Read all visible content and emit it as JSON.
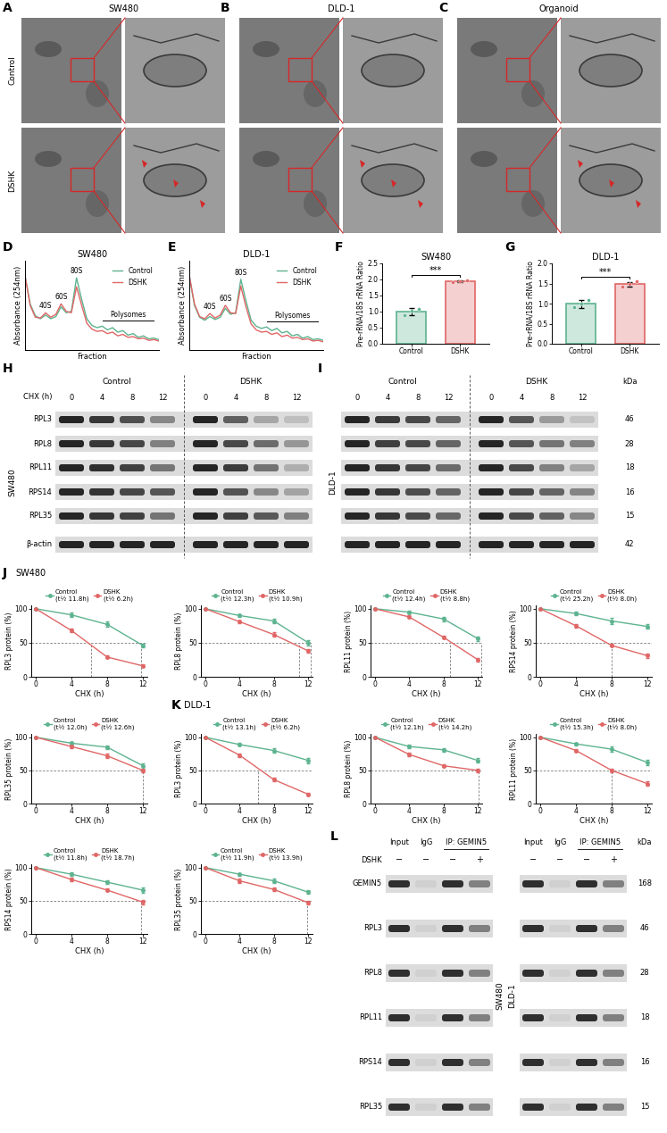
{
  "micrographs": {
    "rows": [
      "Control",
      "DSHK"
    ],
    "columns": [
      {
        "panel": "A",
        "title": "SW480"
      },
      {
        "panel": "B",
        "title": "DLD-1"
      },
      {
        "panel": "C",
        "title": "Organoid"
      }
    ]
  },
  "chart_data": [
    {
      "type": "line",
      "panel": "D",
      "title": "SW480",
      "xlabel": "Fraction",
      "ylabel": "Absorbance (254nm)",
      "tick_labels": false,
      "legend": "upper right",
      "xlim": [
        0,
        26
      ],
      "ylim": [
        0,
        1.2
      ],
      "x": [
        0,
        1,
        2,
        3,
        4,
        5,
        6,
        7,
        8,
        9,
        10,
        11,
        12,
        13,
        14,
        15,
        16,
        17,
        18,
        19,
        20,
        21,
        22,
        23,
        24,
        25,
        26
      ],
      "series": [
        {
          "name": "Control",
          "color": "#5db38f",
          "values": [
            1.0,
            0.62,
            0.46,
            0.42,
            0.47,
            0.42,
            0.45,
            0.58,
            0.5,
            0.52,
            0.97,
            0.68,
            0.42,
            0.33,
            0.3,
            0.32,
            0.27,
            0.3,
            0.24,
            0.26,
            0.2,
            0.22,
            0.17,
            0.19,
            0.15,
            0.16,
            0.14
          ]
        },
        {
          "name": "DSHK",
          "color": "#e06666",
          "values": [
            1.0,
            0.6,
            0.44,
            0.43,
            0.5,
            0.44,
            0.48,
            0.62,
            0.52,
            0.5,
            0.85,
            0.6,
            0.36,
            0.28,
            0.25,
            0.26,
            0.22,
            0.24,
            0.19,
            0.21,
            0.17,
            0.18,
            0.15,
            0.16,
            0.13,
            0.14,
            0.12
          ]
        }
      ],
      "peaks": [
        {
          "label": "40S",
          "x": 4
        },
        {
          "label": "60S",
          "x": 7
        },
        {
          "label": "80S",
          "x": 10
        }
      ],
      "ranges": [
        {
          "label": "Polysomes",
          "x": [
            15,
            25
          ]
        }
      ]
    },
    {
      "type": "line",
      "panel": "E",
      "title": "DLD-1",
      "xlabel": "Fraction",
      "ylabel": "Absorbance (254nm)",
      "tick_labels": false,
      "legend": "upper right",
      "xlim": [
        0,
        26
      ],
      "ylim": [
        0,
        1.2
      ],
      "x": [
        0,
        1,
        2,
        3,
        4,
        5,
        6,
        7,
        8,
        9,
        10,
        11,
        12,
        13,
        14,
        15,
        16,
        17,
        18,
        19,
        20,
        21,
        22,
        23,
        24,
        25,
        26
      ],
      "series": [
        {
          "name": "Control",
          "color": "#5db38f",
          "values": [
            1.0,
            0.6,
            0.44,
            0.4,
            0.45,
            0.41,
            0.44,
            0.56,
            0.48,
            0.5,
            0.95,
            0.66,
            0.4,
            0.32,
            0.29,
            0.31,
            0.26,
            0.29,
            0.23,
            0.25,
            0.19,
            0.21,
            0.16,
            0.18,
            0.14,
            0.15,
            0.13
          ]
        },
        {
          "name": "DSHK",
          "color": "#e06666",
          "values": [
            1.0,
            0.62,
            0.45,
            0.42,
            0.49,
            0.43,
            0.47,
            0.6,
            0.5,
            0.49,
            0.86,
            0.58,
            0.35,
            0.27,
            0.24,
            0.25,
            0.21,
            0.23,
            0.18,
            0.2,
            0.16,
            0.17,
            0.14,
            0.15,
            0.12,
            0.13,
            0.11
          ]
        }
      ],
      "peaks": [
        {
          "label": "40S",
          "x": 4
        },
        {
          "label": "60S",
          "x": 7
        },
        {
          "label": "80S",
          "x": 10
        }
      ],
      "ranges": [
        {
          "label": "Polysomes",
          "x": [
            15,
            25
          ]
        }
      ]
    },
    {
      "type": "bar",
      "panel": "F",
      "title": "SW480",
      "ylabel": "Pre-rRNA/18S rRNA Ratio",
      "categories": [
        "Control",
        "DSHK"
      ],
      "values": [
        1.0,
        1.95
      ],
      "errors": [
        0.1,
        0.03
      ],
      "points": [
        [
          0.9,
          1.02,
          1.08
        ],
        [
          1.92,
          1.95,
          1.98
        ]
      ],
      "colors": [
        "#5db38f",
        "#e06666"
      ],
      "ylim": [
        0,
        2.5
      ],
      "yticks": [
        {
          "value": 0,
          "label": "0.0"
        },
        {
          "value": 0.5,
          "label": "0.5"
        },
        {
          "value": 1.0,
          "label": "1.0"
        },
        {
          "value": 1.5,
          "label": "1.5"
        },
        {
          "value": 2.0,
          "label": "2.0"
        },
        {
          "value": 2.5,
          "label": "2.5"
        }
      ],
      "significance": "***"
    },
    {
      "type": "bar",
      "panel": "G",
      "title": "DLD-1",
      "ylabel": "Pre-rRNA/18S rRNA Ratio",
      "categories": [
        "Control",
        "DSHK"
      ],
      "values": [
        1.0,
        1.48
      ],
      "errors": [
        0.1,
        0.05
      ],
      "points": [
        [
          0.92,
          1.0,
          1.1
        ],
        [
          1.42,
          1.48,
          1.55
        ]
      ],
      "colors": [
        "#5db38f",
        "#e06666"
      ],
      "ylim": [
        0,
        2.0
      ],
      "yticks": [
        {
          "value": 0,
          "label": "0.0"
        },
        {
          "value": 0.5,
          "label": "0.5"
        },
        {
          "value": 1.0,
          "label": "1.0"
        },
        {
          "value": 1.5,
          "label": "1.5"
        },
        {
          "value": 2.0,
          "label": "2.0"
        }
      ],
      "significance": "***"
    },
    {
      "type": "line",
      "panel": "J",
      "title": "SW480",
      "xlabel": "CHX (h)",
      "x": [
        0,
        4,
        8,
        12
      ],
      "xlim": [
        -0.5,
        12.5
      ],
      "xticks": [
        0,
        4,
        8,
        12
      ],
      "ylim": [
        0,
        105
      ],
      "yticks": [
        0,
        50,
        100
      ],
      "legend": "top",
      "marker": "o",
      "line_style": "solid",
      "reference_line": 50,
      "subplots": [
        {
          "ylabel": "RPL3 protein (%)",
          "series": [
            {
              "name": "Control",
              "color": "#5db38f",
              "half_life": 11.8,
              "half_life_label": "(t½ 11.8h)",
              "values": [
                100,
                91,
                77,
                46
              ],
              "errors": [
                0,
                3,
                4,
                3
              ]
            },
            {
              "name": "DSHK",
              "color": "#e06666",
              "half_life": 6.2,
              "half_life_label": "(t½ 6.2h)",
              "values": [
                100,
                68,
                29,
                16
              ],
              "errors": [
                0,
                3,
                2,
                2
              ]
            }
          ]
        },
        {
          "ylabel": "RPL8 protein (%)",
          "series": [
            {
              "name": "Control",
              "color": "#5db38f",
              "half_life": 12.3,
              "half_life_label": "(t½ 12.3h)",
              "values": [
                100,
                90,
                82,
                50
              ],
              "errors": [
                0,
                2,
                3,
                4
              ]
            },
            {
              "name": "DSHK",
              "color": "#e06666",
              "half_life": 10.9,
              "half_life_label": "(t½ 10.9h)",
              "values": [
                100,
                81,
                62,
                38
              ],
              "errors": [
                0,
                2,
                3,
                3
              ]
            }
          ]
        },
        {
          "ylabel": "RPL11 protein (%)",
          "series": [
            {
              "name": "Control",
              "color": "#5db38f",
              "half_life": 12.4,
              "half_life_label": "(t½ 12.4h)",
              "values": [
                100,
                95,
                85,
                56
              ],
              "errors": [
                0,
                2,
                3,
                3
              ]
            },
            {
              "name": "DSHK",
              "color": "#e06666",
              "half_life": 8.8,
              "half_life_label": "(t½ 8.8h)",
              "values": [
                100,
                88,
                58,
                25
              ],
              "errors": [
                0,
                2,
                2,
                3
              ]
            }
          ]
        },
        {
          "ylabel": "RPS14 protein (%)",
          "series": [
            {
              "name": "Control",
              "color": "#5db38f",
              "half_life": 25.2,
              "half_life_label": "(t½ 25.2h)",
              "values": [
                100,
                93,
                82,
                74
              ],
              "errors": [
                0,
                3,
                4,
                3
              ]
            },
            {
              "name": "DSHK",
              "color": "#e06666",
              "half_life": 8.0,
              "half_life_label": "(t½ 8.0h)",
              "values": [
                100,
                75,
                46,
                31
              ],
              "errors": [
                0,
                3,
                2,
                3
              ]
            }
          ]
        },
        {
          "ylabel": "RPL35 protein (%)",
          "series": [
            {
              "name": "Control",
              "color": "#5db38f",
              "half_life": 12.0,
              "half_life_label": "(t½ 12.0h)",
              "values": [
                100,
                91,
                85,
                57
              ],
              "errors": [
                0,
                2,
                3,
                4
              ]
            },
            {
              "name": "DSHK",
              "color": "#e06666",
              "half_life": 12.6,
              "half_life_label": "(t½ 12.6h)",
              "values": [
                100,
                86,
                72,
                50
              ],
              "errors": [
                0,
                3,
                4,
                3
              ]
            }
          ]
        }
      ]
    },
    {
      "type": "line",
      "panel": "K",
      "title": "DLD-1",
      "xlabel": "CHX (h)",
      "x": [
        0,
        4,
        8,
        12
      ],
      "xlim": [
        -0.5,
        12.5
      ],
      "xticks": [
        0,
        4,
        8,
        12
      ],
      "ylim": [
        0,
        105
      ],
      "yticks": [
        0,
        50,
        100
      ],
      "legend": "top",
      "marker": "o",
      "line_style": "solid",
      "reference_line": 50,
      "subplots": [
        {
          "ylabel": "RPL3 protein (%)",
          "series": [
            {
              "name": "Control",
              "color": "#5db38f",
              "half_life": 13.1,
              "half_life_label": "(t½ 13.1h)",
              "values": [
                100,
                89,
                80,
                65
              ],
              "errors": [
                0,
                2,
                3,
                4
              ]
            },
            {
              "name": "DSHK",
              "color": "#e06666",
              "half_life": 6.2,
              "half_life_label": "(t½ 6.2h)",
              "values": [
                100,
                73,
                36,
                14
              ],
              "errors": [
                0,
                3,
                3,
                2
              ]
            }
          ]
        },
        {
          "ylabel": "RPL8 protein (%)",
          "series": [
            {
              "name": "Control",
              "color": "#5db38f",
              "half_life": 12.1,
              "half_life_label": "(t½ 12.1h)",
              "values": [
                100,
                86,
                81,
                65
              ],
              "errors": [
                0,
                3,
                3,
                3
              ]
            },
            {
              "name": "DSHK",
              "color": "#e06666",
              "half_life": 14.2,
              "half_life_label": "(t½ 14.2h)",
              "values": [
                100,
                74,
                57,
                50
              ],
              "errors": [
                0,
                3,
                2,
                3
              ]
            }
          ]
        },
        {
          "ylabel": "RPL11 protein (%)",
          "series": [
            {
              "name": "Control",
              "color": "#5db38f",
              "half_life": 15.3,
              "half_life_label": "(t½ 15.3h)",
              "values": [
                100,
                90,
                82,
                62
              ],
              "errors": [
                0,
                2,
                4,
                4
              ]
            },
            {
              "name": "DSHK",
              "color": "#e06666",
              "half_life": 8.0,
              "half_life_label": "(t½ 8.0h)",
              "values": [
                100,
                80,
                50,
                30
              ],
              "errors": [
                0,
                2,
                3,
                3
              ]
            }
          ]
        },
        {
          "ylabel": "RPS14 protein (%)",
          "series": [
            {
              "name": "Control",
              "color": "#5db38f",
              "half_life": 11.8,
              "half_life_label": "(t½ 11.8h)",
              "values": [
                100,
                90,
                78,
                66
              ],
              "errors": [
                0,
                3,
                3,
                4
              ]
            },
            {
              "name": "DSHK",
              "color": "#e06666",
              "half_life": 18.7,
              "half_life_label": "(t½ 18.7h)",
              "values": [
                100,
                82,
                66,
                48
              ],
              "errors": [
                0,
                3,
                2,
                3
              ]
            }
          ]
        },
        {
          "ylabel": "RPL35 protein (%)",
          "series": [
            {
              "name": "Control",
              "color": "#5db38f",
              "half_life": 11.9,
              "half_life_label": "(t½ 11.9h)",
              "values": [
                100,
                90,
                80,
                63
              ],
              "errors": [
                0,
                2,
                3,
                3
              ]
            },
            {
              "name": "DSHK",
              "color": "#e06666",
              "half_life": 13.9,
              "half_life_label": "(t½ 13.9h)",
              "values": [
                100,
                80,
                67,
                47
              ],
              "errors": [
                0,
                3,
                3,
                3
              ]
            }
          ]
        }
      ]
    }
  ],
  "blots": [
    {
      "panel": "H",
      "cell_line": "SW480",
      "groups": [
        "Control",
        "DSHK"
      ],
      "time_label": "CHX (h)",
      "times": [
        0,
        4,
        8,
        12
      ],
      "proteins": [
        "RPL3",
        "RPL8",
        "RPL11",
        "RPS14",
        "RPL35",
        "β-actin"
      ]
    },
    {
      "panel": "I",
      "cell_line": "DLD-1",
      "groups": [
        "Control",
        "DSHK"
      ],
      "times": [
        0,
        4,
        8,
        12
      ],
      "kda_label": "kDa",
      "kda": [
        46,
        28,
        18,
        16,
        15,
        42
      ]
    }
  ],
  "coip": {
    "panel": "L",
    "cell_lines": [
      "SW480",
      "DLD-1"
    ],
    "lane_headers": [
      {
        "label": "Input",
        "span": 1
      },
      {
        "label": "IgG",
        "span": 1
      },
      {
        "label": "IP: GEMIN5",
        "span": 2
      }
    ],
    "treatment_label": "DSHK",
    "treatment": [
      "−",
      "−",
      "−",
      "+"
    ],
    "proteins": [
      "GEMIN5",
      "RPL3",
      "RPL8",
      "RPL11",
      "RPS14",
      "RPL35"
    ],
    "kda_label": "kDa",
    "kda": [
      168,
      46,
      28,
      18,
      16,
      15
    ]
  }
}
